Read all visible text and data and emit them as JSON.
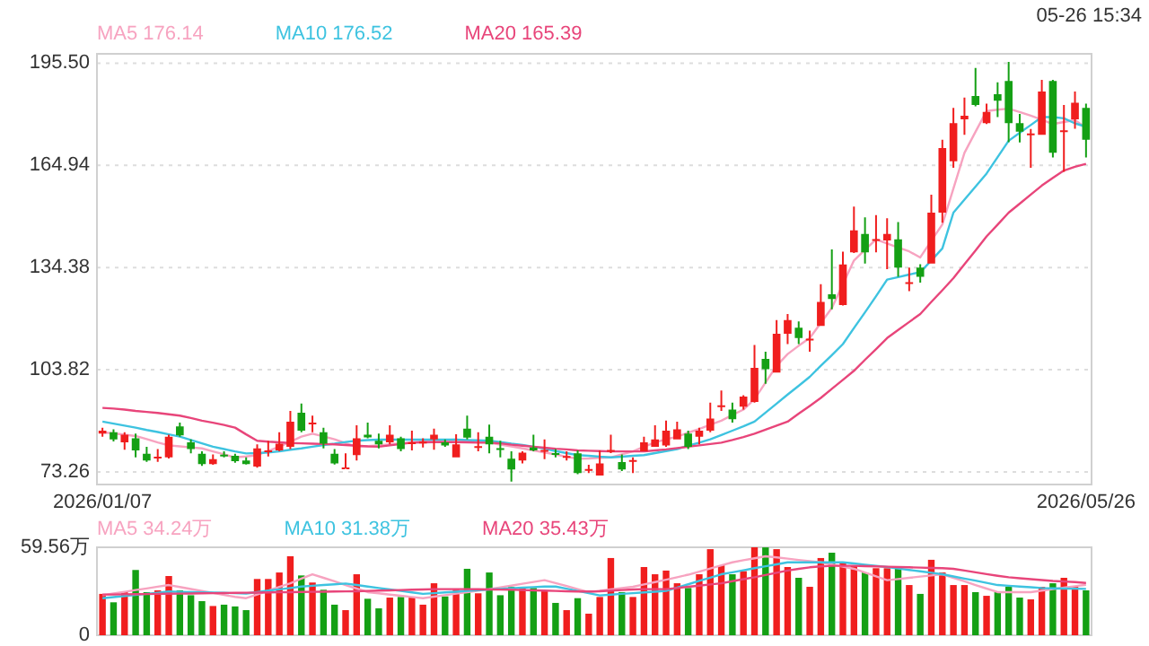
{
  "chart_data": [
    {
      "type": "candlestick",
      "annotations": [
        "05-26 15:34"
      ],
      "legend": "top left",
      "grid": "y",
      "ylim": [
        69.5,
        198.3
      ],
      "yticks": [
        73.26,
        103.82,
        134.38,
        164.94,
        {
          "value": 195.5,
          "label": "195.50"
        }
      ],
      "categories": [
        "2026/01/07",
        null,
        null,
        null,
        null,
        null,
        null,
        null,
        null,
        null,
        null,
        null,
        null,
        null,
        null,
        null,
        null,
        null,
        null,
        null,
        null,
        null,
        null,
        null,
        null,
        null,
        null,
        null,
        null,
        null,
        null,
        null,
        null,
        null,
        null,
        null,
        null,
        null,
        null,
        null,
        null,
        null,
        null,
        null,
        null,
        null,
        null,
        null,
        null,
        null,
        null,
        null,
        null,
        null,
        null,
        null,
        null,
        null,
        null,
        null,
        null,
        null,
        null,
        null,
        null,
        null,
        null,
        null,
        null,
        null,
        null,
        null,
        null,
        null,
        null,
        null,
        null,
        null,
        null,
        null,
        null,
        null,
        null,
        null,
        null,
        null,
        null,
        null,
        null,
        "2026/05/26"
      ],
      "ohlc": [
        [
          84.7,
          86.5,
          83.8,
          85.6
        ],
        [
          85.1,
          86.0,
          82.4,
          83.0
        ],
        [
          82.1,
          85.1,
          79.9,
          84.4
        ],
        [
          83.3,
          84.7,
          77.6,
          79.7
        ],
        [
          78.7,
          80.8,
          76.3,
          76.7
        ],
        [
          77.4,
          80.1,
          76.3,
          77.8
        ],
        [
          77.6,
          84.4,
          77.3,
          83.8
        ],
        [
          86.9,
          88.0,
          83.8,
          84.2
        ],
        [
          82.1,
          83.0,
          78.8,
          80.1
        ],
        [
          78.7,
          79.4,
          75.1,
          75.6
        ],
        [
          75.6,
          78.5,
          75.4,
          77.1
        ],
        [
          78.4,
          79.4,
          77.6,
          78.1
        ],
        [
          78.1,
          78.7,
          76.0,
          76.5
        ],
        [
          76.7,
          77.6,
          75.5,
          75.6
        ],
        [
          74.9,
          81.5,
          74.5,
          80.3
        ],
        [
          79.4,
          82.6,
          77.9,
          79.7
        ],
        [
          79.7,
          85.1,
          79.4,
          81.7
        ],
        [
          80.8,
          91.5,
          80.1,
          88.3
        ],
        [
          91.0,
          93.7,
          85.1,
          85.6
        ],
        [
          87.6,
          90.1,
          85.1,
          88.0
        ],
        [
          85.1,
          86.5,
          80.3,
          81.7
        ],
        [
          78.7,
          80.1,
          75.5,
          75.8
        ],
        [
          74.3,
          78.8,
          74.2,
          74.6
        ],
        [
          78.3,
          87.2,
          76.7,
          83.3
        ],
        [
          84.4,
          88.0,
          83.3,
          83.6
        ],
        [
          82.6,
          84.7,
          80.3,
          81.5
        ],
        [
          82.1,
          87.2,
          81.5,
          84.4
        ],
        [
          83.3,
          83.8,
          79.4,
          80.1
        ],
        [
          81.7,
          85.6,
          79.7,
          82.1
        ],
        [
          81.9,
          83.3,
          80.6,
          82.3
        ],
        [
          83.0,
          86.2,
          79.9,
          84.4
        ],
        [
          82.1,
          83.0,
          80.8,
          81.2
        ],
        [
          77.6,
          84.5,
          77.6,
          81.5
        ],
        [
          86.2,
          90.1,
          83.0,
          83.5
        ],
        [
          80.7,
          85.1,
          79.4,
          81.0
        ],
        [
          83.8,
          87.4,
          78.8,
          81.5
        ],
        [
          80.4,
          82.6,
          77.6,
          80.2
        ],
        [
          77.2,
          79.4,
          70.4,
          74.0
        ],
        [
          76.7,
          79.4,
          75.8,
          79.0
        ],
        [
          80.6,
          84.4,
          79.4,
          79.7
        ],
        [
          79.6,
          83.0,
          77.1,
          79.8
        ],
        [
          78.9,
          80.1,
          77.6,
          78.7
        ],
        [
          77.8,
          79.4,
          76.7,
          78.0
        ],
        [
          78.8,
          79.7,
          72.6,
          72.9
        ],
        [
          73.9,
          75.4,
          72.9,
          74.1
        ],
        [
          72.2,
          79.7,
          72.2,
          75.8
        ],
        [
          79.6,
          84.4,
          78.9,
          79.8
        ],
        [
          76.2,
          78.5,
          73.5,
          74.0
        ],
        [
          76.6,
          77.6,
          72.9,
          76.8
        ],
        [
          79.4,
          83.8,
          79.4,
          82.1
        ],
        [
          80.8,
          87.2,
          80.8,
          83.0
        ],
        [
          81.2,
          88.6,
          80.8,
          85.6
        ],
        [
          83.0,
          88.3,
          83.0,
          86.0
        ],
        [
          84.7,
          85.6,
          80.1,
          80.8
        ],
        [
          83.8,
          86.5,
          81.5,
          85.6
        ],
        [
          85.6,
          94.0,
          85.1,
          89.2
        ],
        [
          93.0,
          97.6,
          91.5,
          93.2
        ],
        [
          91.9,
          94.0,
          88.0,
          89.0
        ],
        [
          92.8,
          96.2,
          91.9,
          95.8
        ],
        [
          94.2,
          111.2,
          94.0,
          104.4
        ],
        [
          107.1,
          109.2,
          99.6,
          104.0
        ],
        [
          103.0,
          118.7,
          103.0,
          114.6
        ],
        [
          114.6,
          120.5,
          111.5,
          118.7
        ],
        [
          116.4,
          118.3,
          111.5,
          113.3
        ],
        [
          112.9,
          115.5,
          109.2,
          113.1
        ],
        [
          116.9,
          129.4,
          116.9,
          124.1
        ],
        [
          126.4,
          139.8,
          121.9,
          125.0
        ],
        [
          123.2,
          139.1,
          123.0,
          135.3
        ],
        [
          138.9,
          152.6,
          138.7,
          145.5
        ],
        [
          144.4,
          149.4,
          135.6,
          138.9
        ],
        [
          142.7,
          150.1,
          138.9,
          142.9
        ],
        [
          142.5,
          149.1,
          133.9,
          144.4
        ],
        [
          142.8,
          148.0,
          131.6,
          134.4
        ],
        [
          129.8,
          134.4,
          127.3,
          130.0
        ],
        [
          134.4,
          135.4,
          129.9,
          131.6
        ],
        [
          135.6,
          156.2,
          135.6,
          150.8
        ],
        [
          150.8,
          172.6,
          147.8,
          170.1
        ],
        [
          166.2,
          182.1,
          164.2,
          177.6
        ],
        [
          178.7,
          185.2,
          174.1,
          179.8
        ],
        [
          185.7,
          194.1,
          182.6,
          183.0
        ],
        [
          177.6,
          183.4,
          177.3,
          180.9
        ],
        [
          186.2,
          189.8,
          179.4,
          184.3
        ],
        [
          190.2,
          195.9,
          171.9,
          177.6
        ],
        [
          177.6,
          180.3,
          171.8,
          175.0
        ],
        [
          174.3,
          175.8,
          164.2,
          174.5
        ],
        [
          174.1,
          190.5,
          174.1,
          187.0
        ],
        [
          190.2,
          190.5,
          167.3,
          168.7
        ],
        [
          175.2,
          183.0,
          163.0,
          175.4
        ],
        [
          178.7,
          187.0,
          175.9,
          183.7
        ],
        [
          182.1,
          183.4,
          167.3,
          172.6
        ]
      ],
      "colors": [
        "#f01e1e",
        "#14a014",
        "#f01e1e",
        "#14a014",
        "#14a014",
        "#f01e1e",
        "#f01e1e",
        "#14a014",
        "#14a014",
        "#14a014",
        "#f01e1e",
        "#14a014",
        "#14a014",
        "#14a014",
        "#f01e1e",
        "#f01e1e",
        "#f01e1e",
        "#f01e1e",
        "#14a014",
        "#f01e1e",
        "#14a014",
        "#14a014",
        "#f01e1e",
        "#f01e1e",
        "#14a014",
        "#14a014",
        "#f01e1e",
        "#14a014",
        "#f01e1e",
        "#f01e1e",
        "#f01e1e",
        "#14a014",
        "#f01e1e",
        "#14a014",
        "#f01e1e",
        "#14a014",
        "#14a014",
        "#14a014",
        "#f01e1e",
        "#14a014",
        "#f01e1e",
        "#14a014",
        "#f01e1e",
        "#14a014",
        "#f01e1e",
        "#f01e1e",
        "#f01e1e",
        "#14a014",
        "#f01e1e",
        "#f01e1e",
        "#f01e1e",
        "#f01e1e",
        "#f01e1e",
        "#14a014",
        "#f01e1e",
        "#f01e1e",
        "#f01e1e",
        "#14a014",
        "#f01e1e",
        "#f01e1e",
        "#14a014",
        "#f01e1e",
        "#f01e1e",
        "#14a014",
        "#f01e1e",
        "#f01e1e",
        "#14a014",
        "#f01e1e",
        "#f01e1e",
        "#14a014",
        "#f01e1e",
        "#f01e1e",
        "#14a014",
        "#f01e1e",
        "#14a014",
        "#f01e1e",
        "#f01e1e",
        "#f01e1e",
        "#f01e1e",
        "#14a014",
        "#f01e1e",
        "#14a014",
        "#14a014",
        "#14a014",
        "#f01e1e",
        "#f01e1e",
        "#14a014",
        "#f01e1e",
        "#f01e1e",
        "#14a014"
      ],
      "series": [
        {
          "type": "line",
          "name": "MA5 176.14",
          "color": "#f7a3c0",
          "values": [
            85.1,
            84.8,
            84.4,
            84.0,
            83.1,
            82.1,
            81.2,
            80.9,
            80.6,
            80.3,
            79.4,
            78.5,
            77.6,
            77.9,
            78.3,
            79.5,
            80.8,
            82.3,
            83.8,
            84.7,
            83.9,
            83.0,
            81.9,
            80.8,
            81.0,
            81.2,
            81.5,
            81.8,
            82.1,
            82.4,
            82.6,
            82.8,
            82.9,
            82.6,
            82.3,
            82.0,
            81.4,
            80.9,
            80.3,
            79.7,
            79.1,
            78.5,
            77.8,
            77.2,
            77.3,
            77.5,
            77.6,
            78.5,
            79.4,
            80.8,
            82.1,
            83.0,
            83.8,
            85.0,
            86.1,
            87.4,
            88.6,
            90.3,
            91.9,
            95.0,
            100.0,
            105.0,
            108.5,
            111.0,
            113.3,
            117.8,
            122.3,
            129.4,
            136.5,
            139.7,
            142.8,
            141.6,
            140.4,
            139.2,
            137.4,
            142.4,
            147.3,
            158.0,
            168.7,
            175.0,
            181.2,
            181.6,
            181.9,
            180.9,
            179.8,
            178.6,
            177.3,
            177.9,
            178.5,
            176.1
          ]
        },
        {
          "type": "line",
          "name": "MA10 176.52",
          "color": "#3ec3e0",
          "values": [
            88.3,
            87.7,
            87.1,
            86.5,
            85.8,
            85.2,
            84.5,
            83.8,
            82.8,
            81.8,
            80.8,
            80.1,
            79.4,
            78.8,
            78.9,
            79.1,
            79.4,
            79.9,
            80.3,
            80.8,
            81.3,
            81.7,
            82.2,
            82.6,
            82.8,
            82.9,
            82.9,
            82.9,
            82.9,
            82.9,
            82.9,
            82.9,
            82.9,
            82.8,
            82.7,
            82.6,
            82.2,
            81.7,
            81.3,
            80.8,
            80.2,
            79.5,
            78.9,
            78.3,
            78.1,
            77.8,
            77.6,
            77.8,
            78.1,
            78.3,
            78.9,
            79.5,
            80.1,
            81.1,
            82.0,
            83.0,
            84.3,
            85.6,
            86.9,
            88.3,
            91.0,
            93.7,
            96.4,
            99.0,
            101.7,
            105.0,
            108.2,
            111.5,
            116.3,
            121.0,
            125.8,
            130.8,
            131.5,
            132.3,
            133.0,
            136.5,
            140.1,
            150.8,
            154.7,
            158.6,
            162.5,
            167.4,
            172.3,
            174.7,
            177.0,
            179.4,
            179.4,
            179.0,
            177.5,
            176.5
          ]
        },
        {
          "type": "line",
          "name": "MA20 165.39",
          "color": "#e8457a",
          "values": [
            92.4,
            92.2,
            91.9,
            91.5,
            91.2,
            90.9,
            90.5,
            90.1,
            89.4,
            88.6,
            88.0,
            87.3,
            86.5,
            84.5,
            82.6,
            82.3,
            82.1,
            81.9,
            81.8,
            81.7,
            81.6,
            81.5,
            81.3,
            81.1,
            80.9,
            80.8,
            81.2,
            81.6,
            82.0,
            82.1,
            82.2,
            82.2,
            82.2,
            82.1,
            82.0,
            82.0,
            81.8,
            81.4,
            81.1,
            80.8,
            80.5,
            80.2,
            80.0,
            79.7,
            79.6,
            79.5,
            79.4,
            79.4,
            79.4,
            79.4,
            79.7,
            80.0,
            80.4,
            80.8,
            81.2,
            81.6,
            82.0,
            82.8,
            83.7,
            84.7,
            85.9,
            87.1,
            88.3,
            90.7,
            93.0,
            95.4,
            98.1,
            100.8,
            103.5,
            106.8,
            110.0,
            113.3,
            115.7,
            118.1,
            120.5,
            124.1,
            127.6,
            131.2,
            135.4,
            139.5,
            143.7,
            147.2,
            150.8,
            153.5,
            156.2,
            158.9,
            161.2,
            163.4,
            164.5,
            165.4
          ]
        }
      ]
    },
    {
      "type": "bar",
      "legend": "top left",
      "tick_labels": "y",
      "ylim": [
        0,
        59.56
      ],
      "yticks": [
        0,
        {
          "value": 59.56,
          "label": "59.56万"
        }
      ],
      "categories": [
        null,
        null,
        null,
        null,
        null,
        null,
        null,
        null,
        null,
        null,
        null,
        null,
        null,
        null,
        null,
        null,
        null,
        null,
        null,
        null,
        null,
        null,
        null,
        null,
        null,
        null,
        null,
        null,
        null,
        null,
        null,
        null,
        null,
        null,
        null,
        null,
        null,
        null,
        null,
        null,
        null,
        null,
        null,
        null,
        null,
        null,
        null,
        null,
        null,
        null,
        null,
        null,
        null,
        null,
        null,
        null,
        null,
        null,
        null,
        null,
        null,
        null,
        null,
        null,
        null,
        null,
        null,
        null,
        null,
        null,
        null,
        null,
        null,
        null,
        null,
        null,
        null,
        null,
        null,
        null,
        null,
        null,
        null,
        null,
        null,
        null,
        null,
        null,
        null,
        null
      ],
      "series": [
        {
          "values": [
            28.0,
            22.3,
            29.2,
            44.2,
            29.2,
            30.4,
            40.1,
            30.4,
            27.1,
            23.1,
            19.8,
            20.7,
            19.5,
            17.0,
            38.1,
            38.1,
            42.5,
            53.5,
            40.5,
            35.7,
            30.8,
            20.7,
            17.0,
            41.3,
            24.7,
            18.2,
            25.5,
            25.9,
            25.5,
            20.7,
            35.2,
            26.3,
            30.8,
            45.0,
            28.4,
            42.5,
            27.1,
            32.8,
            32.0,
            32.0,
            30.4,
            21.9,
            17.0,
            25.1,
            14.6,
            25.9,
            52.3,
            29.2,
            25.9,
            46.2,
            41.3,
            43.8,
            35.2,
            32.0,
            41.3,
            58.3,
            47.4,
            41.3,
            43.4,
            59.56,
            59.5,
            58.3,
            46.2,
            38.9,
            32.8,
            52.3,
            55.9,
            49.0,
            47.4,
            42.5,
            45.4,
            45.4,
            45.4,
            34.0,
            28.0,
            51.1,
            42.5,
            34.0,
            34.0,
            29.2,
            26.7,
            29.2,
            32.8,
            25.5,
            24.3,
            32.8,
            35.2,
            38.9,
            32.8,
            30.4
          ],
          "colors": [
            "#f01e1e",
            "#14a014",
            "#f01e1e",
            "#14a014",
            "#14a014",
            "#f01e1e",
            "#f01e1e",
            "#14a014",
            "#14a014",
            "#14a014",
            "#f01e1e",
            "#14a014",
            "#14a014",
            "#14a014",
            "#f01e1e",
            "#f01e1e",
            "#f01e1e",
            "#f01e1e",
            "#14a014",
            "#f01e1e",
            "#14a014",
            "#14a014",
            "#f01e1e",
            "#f01e1e",
            "#14a014",
            "#14a014",
            "#f01e1e",
            "#14a014",
            "#f01e1e",
            "#f01e1e",
            "#f01e1e",
            "#14a014",
            "#f01e1e",
            "#14a014",
            "#f01e1e",
            "#14a014",
            "#14a014",
            "#14a014",
            "#f01e1e",
            "#14a014",
            "#f01e1e",
            "#14a014",
            "#f01e1e",
            "#14a014",
            "#f01e1e",
            "#f01e1e",
            "#f01e1e",
            "#14a014",
            "#f01e1e",
            "#f01e1e",
            "#f01e1e",
            "#f01e1e",
            "#f01e1e",
            "#14a014",
            "#f01e1e",
            "#f01e1e",
            "#f01e1e",
            "#14a014",
            "#f01e1e",
            "#f01e1e",
            "#14a014",
            "#f01e1e",
            "#f01e1e",
            "#14a014",
            "#f01e1e",
            "#f01e1e",
            "#14a014",
            "#f01e1e",
            "#f01e1e",
            "#14a014",
            "#f01e1e",
            "#f01e1e",
            "#14a014",
            "#f01e1e",
            "#14a014",
            "#f01e1e",
            "#f01e1e",
            "#f01e1e",
            "#f01e1e",
            "#14a014",
            "#f01e1e",
            "#14a014",
            "#14a014",
            "#14a014",
            "#f01e1e",
            "#f01e1e",
            "#14a014",
            "#f01e1e",
            "#f01e1e",
            "#14a014"
          ]
        },
        {
          "type": "line",
          "name": "MA5 34.24万",
          "color": "#f7a3c0",
          "values": [
            27.1,
            28.3,
            29.4,
            30.6,
            31.7,
            32.9,
            34.0,
            32.7,
            31.3,
            30.0,
            28.6,
            27.3,
            26.0,
            25.1,
            27.6,
            30.1,
            32.7,
            35.2,
            38.3,
            41.3,
            38.9,
            36.5,
            34.0,
            31.6,
            29.2,
            28.4,
            27.5,
            26.7,
            25.9,
            25.1,
            26.1,
            27.1,
            28.2,
            29.2,
            30.2,
            31.2,
            32.4,
            33.6,
            34.9,
            36.1,
            37.3,
            35.3,
            33.3,
            31.2,
            29.2,
            30.1,
            31.0,
            31.9,
            32.8,
            34.4,
            36.0,
            37.6,
            39.3,
            41.0,
            43.1,
            45.2,
            47.3,
            49.4,
            50.8,
            52.1,
            53.5,
            52.7,
            51.9,
            51.0,
            50.2,
            49.4,
            47.9,
            46.5,
            45.0,
            42.4,
            39.9,
            37.3,
            38.1,
            38.9,
            39.7,
            40.5,
            41.3,
            38.9,
            36.5,
            34.0,
            31.6,
            29.2,
            29.2,
            29.2,
            29.2,
            30.2,
            31.2,
            32.2,
            33.2,
            34.2
          ]
        },
        {
          "type": "line",
          "name": "MA10 31.38万",
          "color": "#3ec3e0",
          "values": [
            25.1,
            25.8,
            26.6,
            27.3,
            28.0,
            28.8,
            29.6,
            29.4,
            29.2,
            29.0,
            28.9,
            28.7,
            28.5,
            28.3,
            29.2,
            30.2,
            31.1,
            32.0,
            33.0,
            33.5,
            34.0,
            34.5,
            35.0,
            34.0,
            33.0,
            32.0,
            31.0,
            30.0,
            29.0,
            28.0,
            28.5,
            29.0,
            29.5,
            30.0,
            30.5,
            31.0,
            31.4,
            31.8,
            32.2,
            32.6,
            33.0,
            33.0,
            31.5,
            30.0,
            28.5,
            27.0,
            27.5,
            28.0,
            28.5,
            29.0,
            29.5,
            30.0,
            32.3,
            34.5,
            36.8,
            39.0,
            41.3,
            42.6,
            44.0,
            45.4,
            46.7,
            48.0,
            49.4,
            49.4,
            49.4,
            49.4,
            49.4,
            49.4,
            48.6,
            47.8,
            47.0,
            46.2,
            45.2,
            44.2,
            43.3,
            42.3,
            41.3,
            39.8,
            38.4,
            37.0,
            35.5,
            34.0,
            33.5,
            33.0,
            32.5,
            32.0,
            31.8,
            31.6,
            31.5,
            31.4
          ]
        },
        {
          "type": "line",
          "name": "MA20 35.43万",
          "color": "#e8457a",
          "values": [
            27.6,
            27.6,
            27.7,
            27.8,
            27.9,
            28.0,
            28.1,
            28.2,
            28.3,
            28.4,
            28.5,
            28.6,
            28.7,
            28.8,
            28.9,
            29.0,
            29.1,
            29.2,
            29.3,
            29.4,
            29.5,
            29.6,
            29.7,
            29.8,
            30.0,
            30.2,
            30.4,
            30.6,
            30.8,
            31.0,
            31.2,
            31.2,
            31.2,
            31.2,
            31.1,
            31.0,
            30.9,
            30.8,
            30.6,
            30.4,
            30.2,
            30.0,
            29.8,
            29.6,
            29.6,
            29.8,
            30.2,
            30.6,
            31.0,
            31.2,
            31.2,
            31.2,
            32.0,
            32.8,
            33.6,
            34.4,
            35.2,
            36.6,
            38.0,
            39.3,
            40.8,
            42.3,
            43.8,
            45.0,
            46.0,
            46.6,
            47.0,
            47.0,
            47.0,
            46.8,
            46.6,
            46.4,
            46.2,
            46.0,
            45.8,
            45.6,
            45.4,
            45.0,
            43.8,
            42.6,
            41.4,
            40.3,
            39.3,
            38.6,
            38.0,
            37.4,
            36.8,
            36.4,
            36.0,
            35.4
          ]
        }
      ]
    }
  ]
}
